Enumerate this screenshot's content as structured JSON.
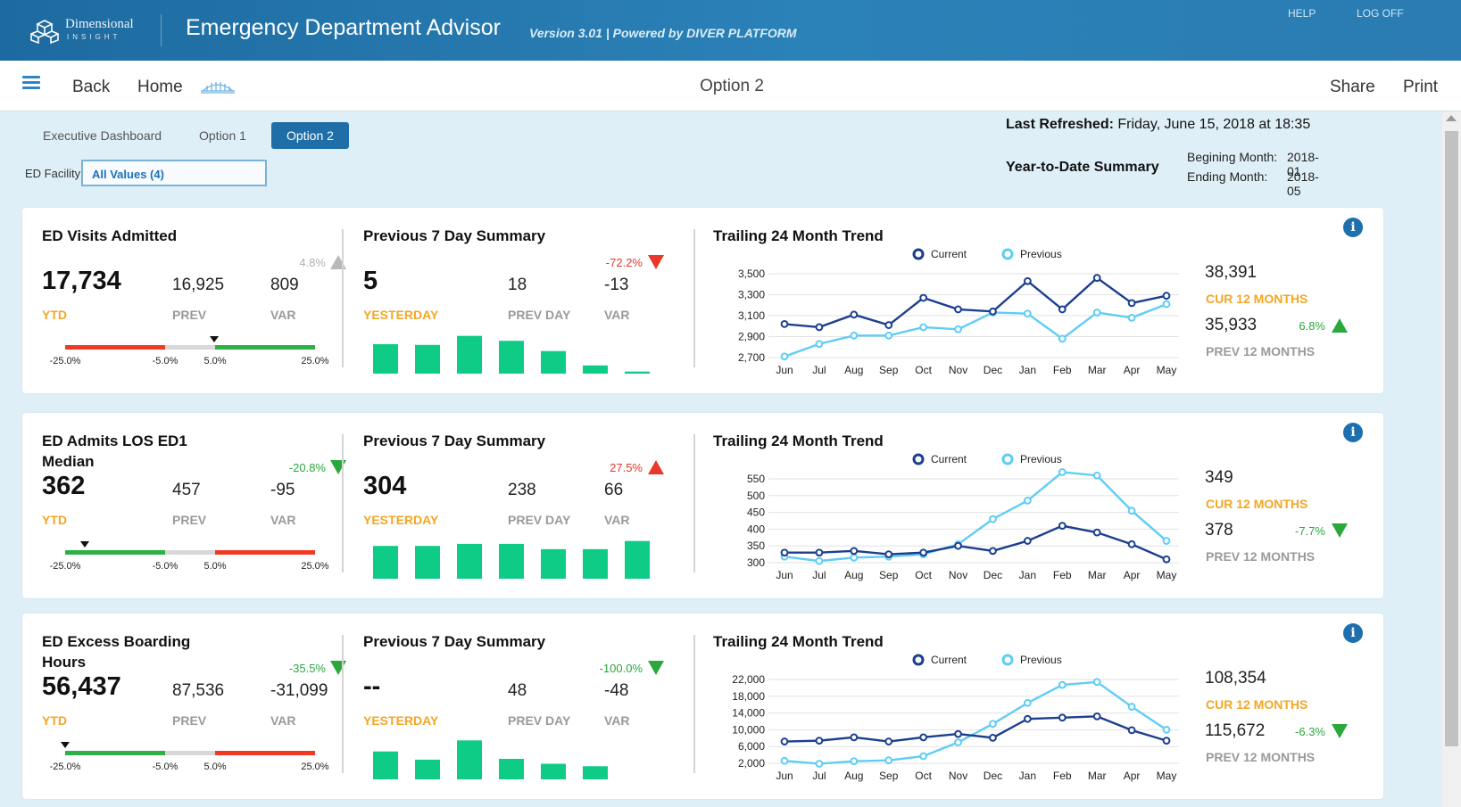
{
  "header": {
    "logo_line1": "Dimensional",
    "logo_line2": "INSIGHT",
    "title": "Emergency Department Advisor",
    "subtitle": "Version 3.01  |  Powered by DIVER PLATFORM",
    "help": "HELP",
    "logoff": "LOG OFF"
  },
  "nav": {
    "back": "Back",
    "home": "Home",
    "title": "Option 2",
    "share": "Share",
    "print": "Print"
  },
  "tabs": [
    "Executive Dashboard",
    "Option 1",
    "Option 2"
  ],
  "active_tab": "Option 2",
  "filter": {
    "label": "ED Facility",
    "value": "All Values (4)"
  },
  "refresh": {
    "label": "Last Refreshed:",
    "value": "Friday, June 15, 2018 at 18:35"
  },
  "ytd_summary": {
    "title": "Year-to-Date Summary",
    "begin_label": "Begining Month:",
    "begin_value": "2018-01",
    "end_label": "Ending Month:",
    "end_value": "2018-05"
  },
  "colors": {
    "current": "#1b3f8f",
    "previous": "#5fcdf5",
    "bars": "#0ecb86",
    "gauge_red": "#f03a24",
    "gauge_grey": "#d8d8d8",
    "gauge_green": "#2eb044",
    "orange": "#f5a623"
  },
  "labels": {
    "ytd": "YTD",
    "prev": "PREV",
    "var": "VAR",
    "yesterday": "YESTERDAY",
    "prev_day": "PREV DAY",
    "summary_title": "Previous 7 Day Summary",
    "trend_title": "Trailing 24 Month Trend",
    "legend_current": "Current",
    "legend_previous": "Previous",
    "cur12": "CUR 12 MONTHS",
    "prev12": "PREV 12 MONTHS",
    "gauge_ticks": [
      "-25.0%",
      "-5.0%",
      "5.0%",
      "25.0%"
    ],
    "months": [
      "Jun",
      "Jul",
      "Aug",
      "Sep",
      "Oct",
      "Nov",
      "Dec",
      "Jan",
      "Feb",
      "Mar",
      "Apr",
      "May"
    ]
  },
  "kpis": [
    {
      "title": "ED Visits Admitted",
      "ytd": "17,734",
      "prev": "16,925",
      "var": "809",
      "var_pct": "4.8%",
      "var_dir": "up",
      "var_color": "grey",
      "gauge_marker": 0.048,
      "gauge_left_color": "red",
      "yesterday": "5",
      "prev_day": "18",
      "day_var": "-13",
      "day_pct": "-72.2%",
      "day_dir": "down",
      "day_color": "red",
      "cur12": "38,391",
      "prev12": "35,933",
      "trend_pct": "6.8%",
      "trend_dir": "up",
      "chart_data": {
        "type": "line",
        "x": [
          "Jun",
          "Jul",
          "Aug",
          "Sep",
          "Oct",
          "Nov",
          "Dec",
          "Jan",
          "Feb",
          "Mar",
          "Apr",
          "May"
        ],
        "series": [
          {
            "name": "Current",
            "values": [
              3020,
              2990,
              3110,
              3010,
              3270,
              3160,
              3140,
              3430,
              3160,
              3460,
              3220,
              3290
            ]
          },
          {
            "name": "Previous",
            "values": [
              2710,
              2830,
              2910,
              2910,
              2990,
              2970,
              3130,
              3120,
              2880,
              3130,
              3080,
              3210
            ]
          }
        ],
        "yticks": [
          "3,500",
          "3,300",
          "3,100",
          "2,900",
          "2,700"
        ],
        "ylim": [
          2700,
          3500
        ]
      },
      "bars": [
        0.72,
        0.7,
        0.92,
        0.8,
        0.55,
        0.2,
        0.05
      ]
    },
    {
      "title": "ED Admits LOS ED1 Median",
      "ytd": "362",
      "prev": "457",
      "var": "-95",
      "var_pct": "-20.8%",
      "var_dir": "down",
      "var_color": "green",
      "gauge_marker": -0.21,
      "gauge_left_color": "green",
      "yesterday": "304",
      "prev_day": "238",
      "day_var": "66",
      "day_pct": "27.5%",
      "day_dir": "up",
      "day_color": "red",
      "cur12": "349",
      "prev12": "378",
      "trend_pct": "-7.7%",
      "trend_dir": "down",
      "chart_data": {
        "type": "line",
        "x": [
          "Jun",
          "Jul",
          "Aug",
          "Sep",
          "Oct",
          "Nov",
          "Dec",
          "Jan",
          "Feb",
          "Mar",
          "Apr",
          "May"
        ],
        "series": [
          {
            "name": "Current",
            "values": [
              330,
              330,
              335,
              325,
              330,
              350,
              335,
              365,
              410,
              390,
              355,
              310
            ]
          },
          {
            "name": "Previous",
            "values": [
              318,
              305,
              315,
              318,
              325,
              355,
              430,
              485,
              570,
              560,
              455,
              365
            ]
          }
        ],
        "yticks": [
          "550",
          "500",
          "450",
          "400",
          "350",
          "300"
        ],
        "ylim": [
          300,
          550
        ]
      },
      "bars": [
        0.8,
        0.8,
        0.85,
        0.85,
        0.72,
        0.72,
        0.92
      ]
    },
    {
      "title": "ED Excess Boarding Hours",
      "ytd": "56,437",
      "prev": "87,536",
      "var": "-31,099",
      "var_pct": "-35.5%",
      "var_dir": "down",
      "var_color": "green",
      "gauge_marker": -0.36,
      "gauge_left_color": "green",
      "yesterday": "--",
      "prev_day": "48",
      "day_var": "-48",
      "day_pct": "-100.0%",
      "day_dir": "down",
      "day_color": "green",
      "cur12": "108,354",
      "prev12": "115,672",
      "trend_pct": "-6.3%",
      "trend_dir": "down",
      "chart_data": {
        "type": "line",
        "x": [
          "Jun",
          "Jul",
          "Aug",
          "Sep",
          "Oct",
          "Nov",
          "Dec",
          "Jan",
          "Feb",
          "Mar",
          "Apr",
          "May"
        ],
        "series": [
          {
            "name": "Current",
            "values": [
              7200,
              7400,
              8200,
              7200,
              8200,
              9000,
              8100,
              12600,
              12900,
              13200,
              9900,
              7400
            ]
          },
          {
            "name": "Previous",
            "values": [
              2600,
              1900,
              2500,
              2700,
              3700,
              7000,
              11400,
              16400,
              20700,
              21400,
              15500,
              10000
            ]
          }
        ],
        "yticks": [
          "22,000",
          "18,000",
          "14,000",
          "10,000",
          "6,000",
          "2,000"
        ],
        "ylim": [
          2000,
          22000
        ]
      },
      "bars": [
        0.68,
        0.48,
        0.95,
        0.5,
        0.38,
        0.32,
        0.0
      ]
    }
  ]
}
